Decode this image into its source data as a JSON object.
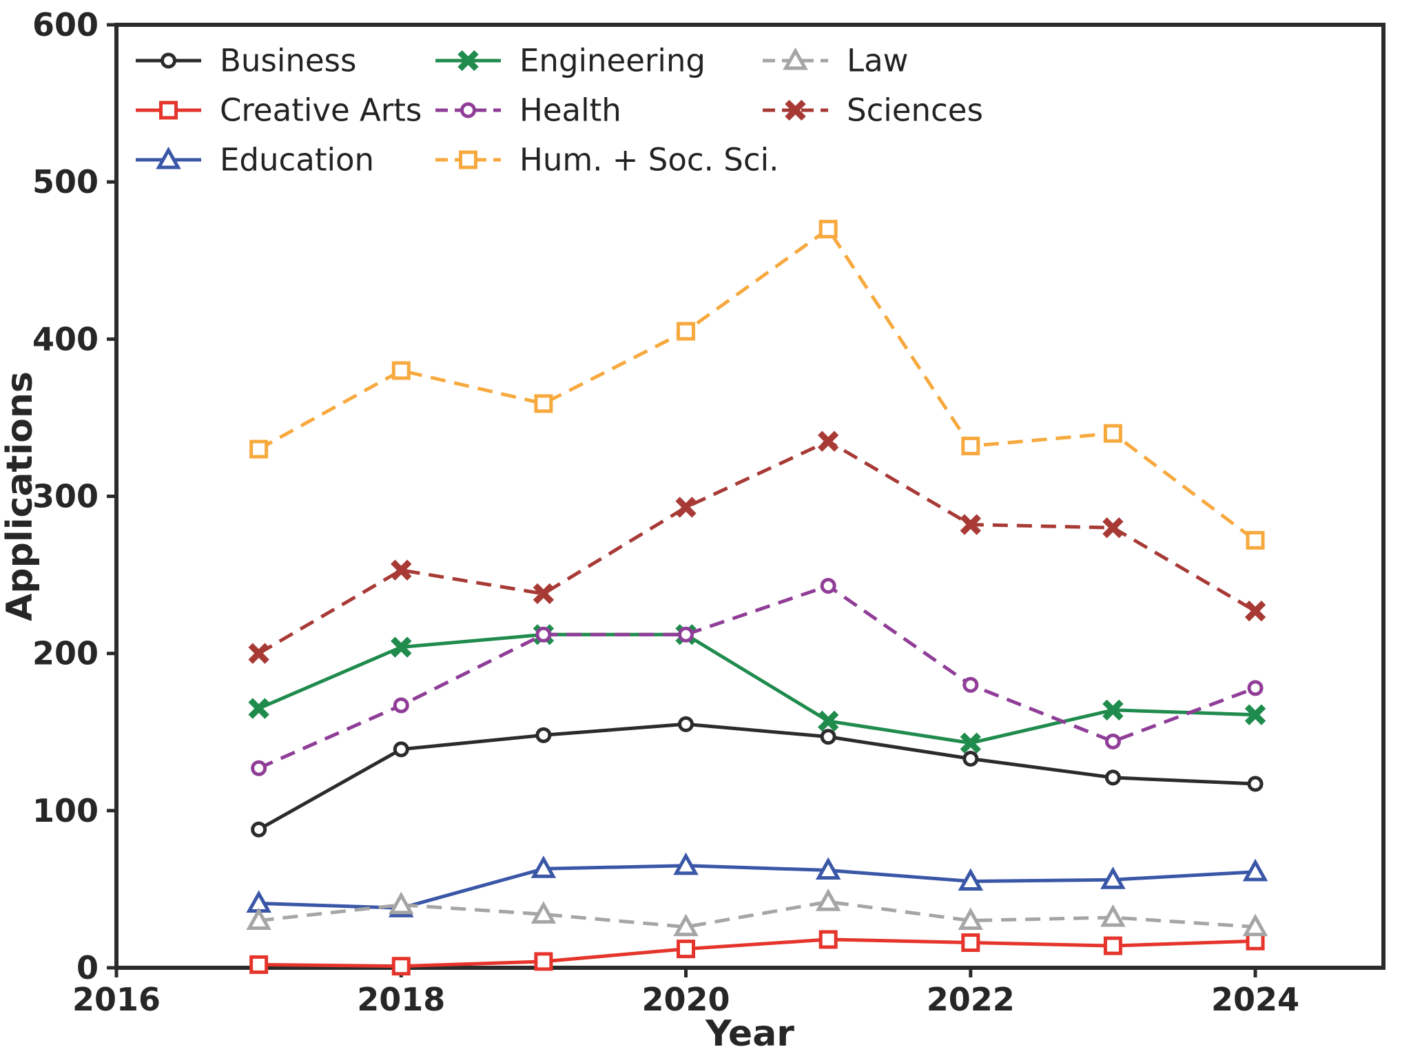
{
  "figure": {
    "background": "#ffffff",
    "axis_color": "#2b2b2b",
    "tick_label_color": "#262626"
  },
  "chart_data": {
    "type": "line",
    "title": "",
    "xlabel": "Year",
    "ylabel": "Applications",
    "x": [
      2017,
      2018,
      2019,
      2020,
      2021,
      2022,
      2023,
      2024
    ],
    "xticks": [
      2016,
      2018,
      2020,
      2022,
      2024
    ],
    "yticks": [
      0,
      100,
      200,
      300,
      400,
      500,
      600
    ],
    "xlim": [
      2016,
      2024.9
    ],
    "ylim": [
      0,
      600
    ],
    "grid": false,
    "legend": {
      "position": "upper left",
      "columns": 3,
      "rows": 3
    },
    "series": [
      {
        "name": "Business",
        "color": "#2b2b2b",
        "linestyle": "solid",
        "marker": "circle",
        "values": [
          88,
          139,
          148,
          155,
          147,
          133,
          121,
          117
        ]
      },
      {
        "name": "Creative Arts",
        "color": "#e5342b",
        "linestyle": "solid",
        "marker": "square",
        "values": [
          2,
          1,
          4,
          12,
          18,
          16,
          14,
          17
        ]
      },
      {
        "name": "Education",
        "color": "#3a57a7",
        "linestyle": "solid",
        "marker": "triangle",
        "values": [
          41,
          38,
          63,
          65,
          62,
          55,
          56,
          61
        ]
      },
      {
        "name": "Engineering",
        "color": "#1f8b4d",
        "linestyle": "solid",
        "marker": "x",
        "values": [
          165,
          204,
          212,
          212,
          157,
          143,
          164,
          161
        ]
      },
      {
        "name": "Health",
        "color": "#8f3d97",
        "linestyle": "dashed",
        "marker": "circle",
        "values": [
          127,
          167,
          212,
          212,
          243,
          180,
          144,
          178
        ]
      },
      {
        "name": "Hum. + Soc. Sci.",
        "color": "#f7a93e",
        "linestyle": "dashed",
        "marker": "square",
        "values": [
          330,
          380,
          359,
          405,
          470,
          332,
          340,
          272
        ]
      },
      {
        "name": "Law",
        "color": "#a5a5a5",
        "linestyle": "dashed",
        "marker": "triangle",
        "values": [
          30,
          40,
          34,
          26,
          42,
          30,
          32,
          26
        ]
      },
      {
        "name": "Sciences",
        "color": "#a83a36",
        "linestyle": "dashed",
        "marker": "x",
        "values": [
          200,
          253,
          238,
          293,
          335,
          282,
          280,
          227
        ]
      }
    ]
  }
}
